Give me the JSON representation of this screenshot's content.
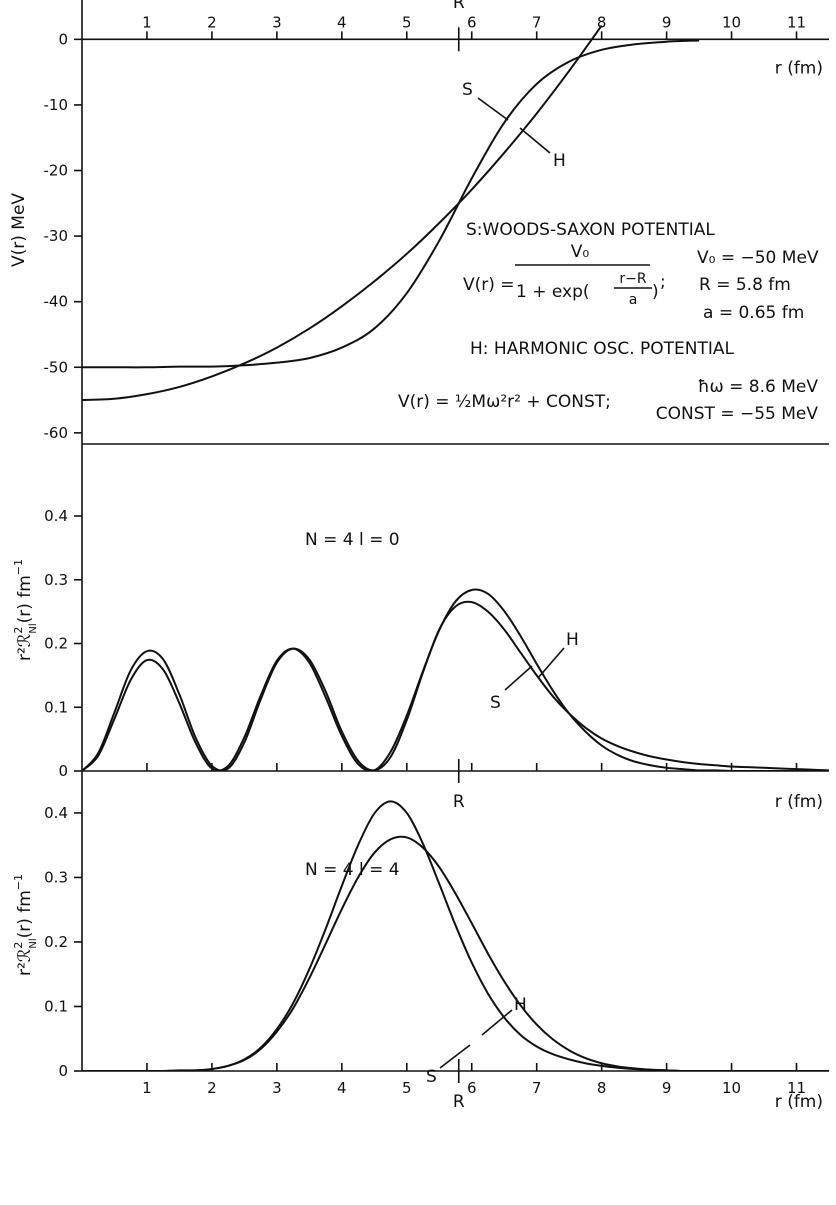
{
  "chart_data": [
    {
      "type": "line",
      "ylabel": "V(r) MeV",
      "xlabel": "r (fm)",
      "r_marker": {
        "value": 5.8,
        "label": "R"
      },
      "xlim": [
        0,
        11.5
      ],
      "xticks": [
        1,
        2,
        3,
        4,
        5,
        6,
        7,
        8,
        9,
        10,
        11
      ],
      "xtick_labels": "top",
      "xaxis_at_zero": true,
      "ylim": [
        -61.7,
        6
      ],
      "yticks": [
        0,
        -10,
        -20,
        -30,
        -40,
        -50,
        -60
      ],
      "x": [
        0,
        0.5,
        1,
        1.5,
        2,
        2.5,
        3,
        3.5,
        4,
        4.5,
        5,
        5.5,
        6,
        6.5,
        7,
        7.5,
        8,
        8.5,
        9,
        9.5,
        10,
        10.5,
        11,
        11.5
      ],
      "series": [
        {
          "name": "S",
          "color": "#111111",
          "values": [
            -50,
            -50,
            -50,
            -49.9,
            -49.9,
            -49.7,
            -49.3,
            -48.6,
            -47,
            -44.1,
            -38.7,
            -30.7,
            -21.2,
            -12.7,
            -6.8,
            -3.4,
            -1.6,
            -0.77,
            -0.36,
            -0.17,
            null,
            null,
            null,
            null
          ]
        },
        {
          "name": "H",
          "color": "#111111",
          "values": [
            -55,
            -54.8,
            -54.1,
            -53,
            -51.4,
            -49.4,
            -47,
            -44.1,
            -40.7,
            -36.9,
            -32.7,
            -28,
            -22.9,
            -17.3,
            -11.3,
            -4.8,
            2.1,
            null,
            null,
            null,
            null,
            null,
            null,
            null
          ]
        }
      ],
      "annotations": {
        "ws_title": "S:WOODS-SAXON POTENTIAL",
        "ws_lhs": "V(r) =",
        "ws_numerator": "V₀",
        "ws_denominator": "1 + exp(",
        "ws_exp_numerator": "r−R",
        "ws_exp_denominator": "a",
        "ws_close": ")",
        "ws_sep": ";",
        "v0": "V₀ = −50 MeV",
        "R": "R = 5.8 fm",
        "a": "a = 0.65 fm",
        "ho_title": "H: HARMONIC OSC. POTENTIAL",
        "ho_formula": "V(r) = ½Mω²r² + CONST;",
        "hw": "ħω = 8.6 MeV",
        "const": "CONST = −55 MeV"
      }
    },
    {
      "type": "line",
      "title": "N = 4    l = 0",
      "ylabel": [
        "r²ℛ",
        "2",
        "Nl",
        "(r) fm",
        "−1"
      ],
      "xlabel": "r (fm)",
      "r_marker": {
        "value": 5.8,
        "label": "R"
      },
      "xlim": [
        0,
        11.5
      ],
      "xticks": [
        1,
        2,
        3,
        4,
        5,
        6,
        7,
        8,
        9,
        10,
        11
      ],
      "xtick_labels": "none",
      "xaxis_at_zero": false,
      "ylim": [
        0,
        0.513
      ],
      "yticks": [
        0,
        0.1,
        0.2,
        0.3,
        0.4
      ],
      "x": [
        0,
        0.25,
        0.5,
        0.75,
        1,
        1.25,
        1.5,
        1.75,
        2,
        2.25,
        2.5,
        2.75,
        3,
        3.25,
        3.5,
        3.75,
        4,
        4.25,
        4.5,
        4.75,
        5,
        5.25,
        5.5,
        5.75,
        6,
        6.25,
        6.5,
        6.75,
        7,
        7.25,
        7.5,
        7.75,
        8,
        8.25,
        8.5,
        8.75,
        9,
        9.25,
        9.5,
        9.75,
        10,
        10.25,
        10.5,
        10.75,
        11,
        11.25,
        11.5
      ],
      "series": [
        {
          "name": "S",
          "color": "#111111",
          "values": [
            0,
            0.028,
            0.092,
            0.158,
            0.188,
            0.175,
            0.12,
            0.052,
            0.008,
            0.004,
            0.045,
            0.112,
            0.17,
            0.192,
            0.175,
            0.125,
            0.062,
            0.016,
            0.001,
            0.022,
            0.08,
            0.155,
            0.222,
            0.258,
            0.265,
            0.25,
            0.222,
            0.186,
            0.15,
            0.117,
            0.09,
            0.068,
            0.051,
            0.039,
            0.03,
            0.023,
            0.018,
            0.014,
            0.011,
            0.009,
            0.007,
            0.006,
            0.005,
            0.004,
            0.003,
            0.002,
            0.001
          ]
        },
        {
          "name": "H",
          "color": "#111111",
          "values": [
            0,
            0.024,
            0.082,
            0.143,
            0.174,
            0.159,
            0.106,
            0.044,
            0.004,
            0.008,
            0.053,
            0.118,
            0.173,
            0.192,
            0.17,
            0.116,
            0.055,
            0.011,
            0.001,
            0.03,
            0.087,
            0.157,
            0.221,
            0.266,
            0.284,
            0.278,
            0.251,
            0.212,
            0.168,
            0.126,
            0.09,
            0.062,
            0.04,
            0.025,
            0.015,
            0.009,
            0.005,
            0.003,
            0.001,
            0.001,
            0,
            0,
            0,
            0,
            0,
            0,
            0
          ]
        }
      ]
    },
    {
      "type": "line",
      "title": "N = 4    l = 4",
      "ylabel": [
        "r²ℛ",
        "2",
        "Nl",
        "(r) fm",
        "−1"
      ],
      "xlabel": "r (fm)",
      "r_marker": {
        "value": 5.8,
        "label": "R"
      },
      "xlim": [
        0,
        11.5
      ],
      "xticks": [
        1,
        2,
        3,
        4,
        5,
        6,
        7,
        8,
        9,
        10,
        11
      ],
      "xtick_labels": "bottom",
      "xaxis_at_zero": false,
      "ylim": [
        0,
        0.465
      ],
      "yticks": [
        0,
        0.1,
        0.2,
        0.3,
        0.4
      ],
      "x": [
        0,
        0.25,
        0.5,
        0.75,
        1,
        1.25,
        1.5,
        1.75,
        2,
        2.25,
        2.5,
        2.75,
        3,
        3.25,
        3.5,
        3.75,
        4,
        4.25,
        4.5,
        4.75,
        5,
        5.25,
        5.5,
        5.75,
        6,
        6.25,
        6.5,
        6.75,
        7,
        7.25,
        7.5,
        7.75,
        8,
        8.25,
        8.5,
        8.75,
        9,
        9.25,
        9.5,
        9.75,
        10,
        10.25,
        10.5,
        10.75,
        11,
        11.25,
        11.5
      ],
      "series": [
        {
          "name": "S",
          "color": "#111111",
          "values": [
            0,
            0,
            0,
            0,
            0,
            0,
            0,
            0.001,
            0.003,
            0.008,
            0.018,
            0.036,
            0.065,
            0.105,
            0.158,
            0.22,
            0.287,
            0.35,
            0.399,
            0.418,
            0.4,
            0.352,
            0.29,
            0.226,
            0.168,
            0.12,
            0.083,
            0.056,
            0.038,
            0.026,
            0.018,
            0.012,
            0.008,
            0.005,
            0.003,
            0.002,
            0.001,
            0,
            0,
            0,
            0,
            0,
            0,
            0,
            0,
            0,
            0
          ]
        },
        {
          "name": "H",
          "color": "#111111",
          "values": [
            0,
            0,
            0,
            0,
            0,
            0,
            0.001,
            0.001,
            0.003,
            0.008,
            0.017,
            0.034,
            0.061,
            0.097,
            0.144,
            0.197,
            0.251,
            0.3,
            0.338,
            0.359,
            0.362,
            0.346,
            0.316,
            0.275,
            0.229,
            0.182,
            0.139,
            0.102,
            0.072,
            0.049,
            0.032,
            0.02,
            0.012,
            0.007,
            0.004,
            0.002,
            0.001,
            0,
            0,
            0,
            0,
            0,
            0,
            0,
            0,
            0,
            0
          ]
        }
      ]
    }
  ]
}
